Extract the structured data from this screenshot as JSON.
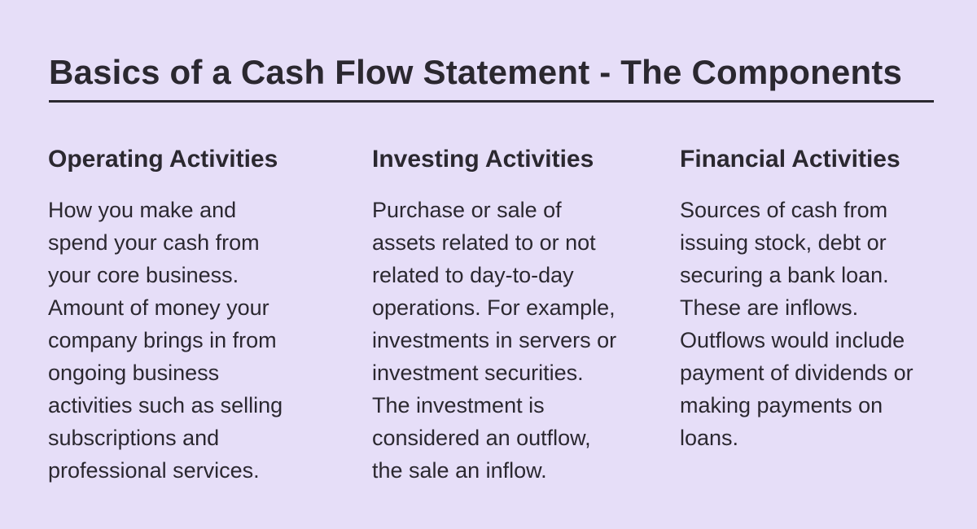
{
  "title": "Basics of a Cash Flow Statement - The Components",
  "columns": [
    {
      "heading": "Operating Activities",
      "lines": [
        "How you make and",
        "spend your cash from",
        "your core business.",
        "Amount of money your",
        "company brings in from",
        "ongoing business",
        "activities such as selling",
        "subscriptions and",
        "professional services."
      ]
    },
    {
      "heading": "Investing Activities",
      "lines": [
        "Purchase or sale of",
        "assets related to or not",
        "related to day-to-day",
        "operations. For example,",
        "investments in servers or",
        "investment securities.",
        "The investment is",
        "considered an outflow,",
        "the sale an inflow."
      ]
    },
    {
      "heading": "Financial Activities",
      "lines": [
        "Sources of cash from",
        "issuing stock, debt or",
        "securing a bank loan.",
        "These are inflows.",
        "Outflows would include",
        "payment of dividends or",
        "making payments on",
        "loans."
      ]
    }
  ]
}
